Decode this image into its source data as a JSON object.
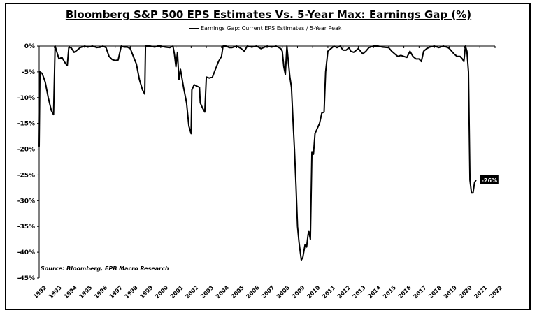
{
  "chart_data": {
    "type": "line",
    "title": "Bloomberg S&P 500 EPS Estimates Vs. 5-Year Max: Earnings Gap (%)",
    "xlabel": "",
    "ylabel": "",
    "xlim": [
      1992,
      2022
    ],
    "ylim": [
      -45,
      0
    ],
    "y_ticks": [
      0,
      -5,
      -10,
      -15,
      -20,
      -25,
      -30,
      -35,
      -40,
      -45
    ],
    "y_tick_labels": [
      "0%",
      "-5%",
      "-10%",
      "-15%",
      "-20%",
      "-25%",
      "-30%",
      "-35%",
      "-40%",
      "-45%"
    ],
    "x_tick_labels": [
      "1992",
      "1993",
      "1994",
      "1995",
      "1996",
      "1997",
      "1998",
      "1999",
      "2000",
      "2001",
      "2002",
      "2003",
      "2004",
      "2005",
      "2006",
      "2007",
      "2008",
      "2009",
      "2010",
      "2011",
      "2012",
      "2013",
      "2014",
      "2015",
      "2016",
      "2017",
      "2018",
      "2019",
      "2020",
      "2021",
      "2022"
    ],
    "legend": "top-center",
    "source": "Source: Bloomberg, EPB Macro Research",
    "annotation": {
      "label": "-26%",
      "x": 2020.75,
      "y": -26
    },
    "series": [
      {
        "name": "Earnings Gap: Current EPS Estimates / 5-Year Peak",
        "color": "#000000",
        "points": [
          [
            1992.0,
            -19.5
          ],
          [
            1992.05,
            -5
          ],
          [
            1992.2,
            -5.3
          ],
          [
            1992.4,
            -7
          ],
          [
            1992.6,
            -10
          ],
          [
            1992.8,
            -12.5
          ],
          [
            1992.95,
            -13.3
          ],
          [
            1993.05,
            0
          ],
          [
            1993.15,
            -1
          ],
          [
            1993.3,
            -2.5
          ],
          [
            1993.5,
            -2.2
          ],
          [
            1993.7,
            -3.2
          ],
          [
            1993.85,
            -3.8
          ],
          [
            1993.95,
            -0.3
          ],
          [
            1994.1,
            -0.3
          ],
          [
            1994.3,
            -1.2
          ],
          [
            1994.5,
            -0.8
          ],
          [
            1994.7,
            -0.3
          ],
          [
            1995.0,
            0
          ],
          [
            1995.2,
            -0.2
          ],
          [
            1995.5,
            0
          ],
          [
            1995.8,
            -0.3
          ],
          [
            1996.0,
            -0.2
          ],
          [
            1996.2,
            0
          ],
          [
            1996.4,
            -0.3
          ],
          [
            1996.6,
            -2
          ],
          [
            1996.8,
            -2.6
          ],
          [
            1997.0,
            -2.8
          ],
          [
            1997.2,
            -2.7
          ],
          [
            1997.4,
            0
          ],
          [
            1997.6,
            -0.2
          ],
          [
            1997.8,
            -0.2
          ],
          [
            1998.0,
            -0.5
          ],
          [
            1998.2,
            -2
          ],
          [
            1998.4,
            -3.5
          ],
          [
            1998.6,
            -6.5
          ],
          [
            1998.8,
            -8.5
          ],
          [
            1998.95,
            -9.3
          ],
          [
            1999.0,
            0
          ],
          [
            1999.3,
            0
          ],
          [
            1999.6,
            -0.2
          ],
          [
            1999.8,
            0
          ],
          [
            2000.0,
            0
          ],
          [
            2000.3,
            -0.2
          ],
          [
            2000.6,
            -0.3
          ],
          [
            2000.8,
            0
          ],
          [
            2000.9,
            -1.5
          ],
          [
            2001.0,
            -4
          ],
          [
            2001.1,
            -1.2
          ],
          [
            2001.2,
            -6.5
          ],
          [
            2001.3,
            -4.5
          ],
          [
            2001.5,
            -8
          ],
          [
            2001.7,
            -11
          ],
          [
            2001.85,
            -15.5
          ],
          [
            2002.0,
            -17
          ],
          [
            2002.05,
            -8.5
          ],
          [
            2002.2,
            -7.5
          ],
          [
            2002.4,
            -7.8
          ],
          [
            2002.55,
            -8
          ],
          [
            2002.6,
            -11
          ],
          [
            2002.75,
            -12
          ],
          [
            2002.9,
            -12.8
          ],
          [
            2003.0,
            -6
          ],
          [
            2003.2,
            -6.2
          ],
          [
            2003.4,
            -6
          ],
          [
            2003.6,
            -4.5
          ],
          [
            2003.8,
            -3
          ],
          [
            2004.0,
            -2
          ],
          [
            2004.1,
            0
          ],
          [
            2004.3,
            0
          ],
          [
            2004.5,
            -0.3
          ],
          [
            2004.7,
            -0.3
          ],
          [
            2005.0,
            0
          ],
          [
            2005.3,
            -0.5
          ],
          [
            2005.5,
            -1
          ],
          [
            2005.7,
            0
          ],
          [
            2006.0,
            -0.2
          ],
          [
            2006.3,
            0
          ],
          [
            2006.6,
            -0.5
          ],
          [
            2007.0,
            0
          ],
          [
            2007.3,
            -0.2
          ],
          [
            2007.6,
            0
          ],
          [
            2007.9,
            -0.5
          ],
          [
            2008.0,
            -1
          ],
          [
            2008.1,
            -4
          ],
          [
            2008.2,
            -5.5
          ],
          [
            2008.3,
            0
          ],
          [
            2008.4,
            -3
          ],
          [
            2008.5,
            -6
          ],
          [
            2008.6,
            -8
          ],
          [
            2008.7,
            -14
          ],
          [
            2008.8,
            -20
          ],
          [
            2008.9,
            -27
          ],
          [
            2009.0,
            -35
          ],
          [
            2009.1,
            -38
          ],
          [
            2009.25,
            -41.5
          ],
          [
            2009.35,
            -41
          ],
          [
            2009.5,
            -38.5
          ],
          [
            2009.6,
            -39
          ],
          [
            2009.7,
            -36.5
          ],
          [
            2009.75,
            -36
          ],
          [
            2009.85,
            -37.5
          ],
          [
            2009.95,
            -20.5
          ],
          [
            2010.05,
            -21
          ],
          [
            2010.15,
            -17
          ],
          [
            2010.3,
            -16
          ],
          [
            2010.45,
            -15
          ],
          [
            2010.6,
            -13
          ],
          [
            2010.75,
            -12.8
          ],
          [
            2010.85,
            -5
          ],
          [
            2011.0,
            -1
          ],
          [
            2011.2,
            -0.5
          ],
          [
            2011.4,
            0
          ],
          [
            2011.6,
            -0.3
          ],
          [
            2011.8,
            0
          ],
          [
            2012.0,
            -0.8
          ],
          [
            2012.2,
            -0.8
          ],
          [
            2012.4,
            -0.3
          ],
          [
            2012.5,
            -1
          ],
          [
            2012.7,
            -1.2
          ],
          [
            2013.0,
            -0.5
          ],
          [
            2013.3,
            -1.5
          ],
          [
            2013.5,
            -1
          ],
          [
            2013.7,
            -0.3
          ],
          [
            2014.0,
            0
          ],
          [
            2014.3,
            0
          ],
          [
            2014.6,
            -0.2
          ],
          [
            2015.0,
            -0.3
          ],
          [
            2015.2,
            -1
          ],
          [
            2015.4,
            -1.5
          ],
          [
            2015.6,
            -2
          ],
          [
            2015.8,
            -1.8
          ],
          [
            2016.0,
            -2
          ],
          [
            2016.2,
            -2.2
          ],
          [
            2016.4,
            -1
          ],
          [
            2016.6,
            -2
          ],
          [
            2016.8,
            -2.5
          ],
          [
            2017.0,
            -2.5
          ],
          [
            2017.15,
            -3
          ],
          [
            2017.3,
            -1
          ],
          [
            2017.5,
            -0.5
          ],
          [
            2017.7,
            -0.2
          ],
          [
            2018.0,
            0
          ],
          [
            2018.3,
            -0.3
          ],
          [
            2018.6,
            0
          ],
          [
            2018.9,
            -0.3
          ],
          [
            2019.0,
            -0.5
          ],
          [
            2019.3,
            -1.5
          ],
          [
            2019.5,
            -2
          ],
          [
            2019.7,
            -2
          ],
          [
            2019.85,
            -2.5
          ],
          [
            2019.95,
            -3
          ],
          [
            2020.05,
            0
          ],
          [
            2020.15,
            -1
          ],
          [
            2020.25,
            -5
          ],
          [
            2020.35,
            -26
          ],
          [
            2020.45,
            -28.5
          ],
          [
            2020.55,
            -28.5
          ],
          [
            2020.65,
            -26.5
          ],
          [
            2020.75,
            -26
          ]
        ]
      }
    ]
  }
}
